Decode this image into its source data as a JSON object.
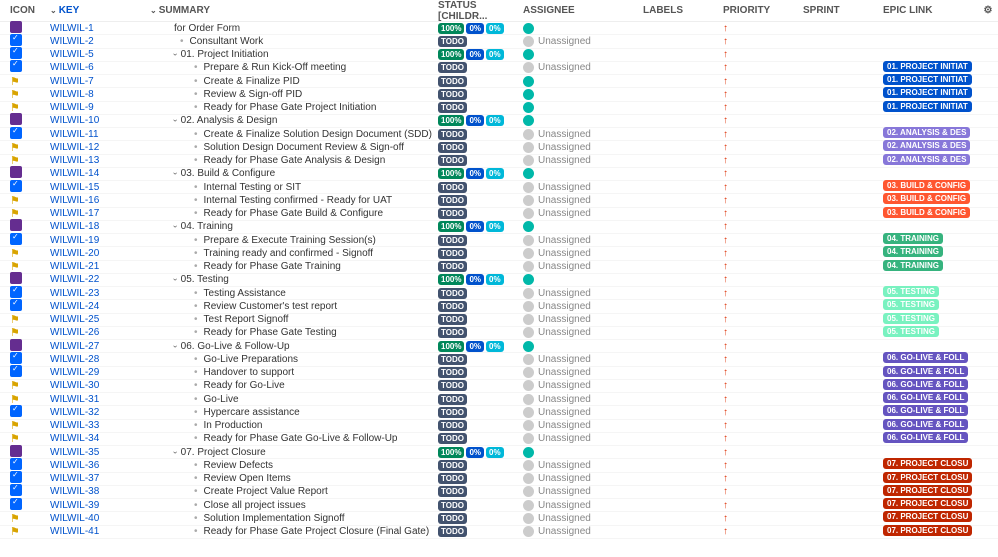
{
  "headers": {
    "icon": "ICON",
    "key": "KEY",
    "summary": "SUMMARY",
    "status": "STATUS [CHILDR...",
    "assignee": "ASSIGNEE",
    "labels": "LABELS",
    "priority": "PRIORITY",
    "sprint": "SPRINT",
    "epic": "EPIC LINK"
  },
  "badges": {
    "todo": "TODO",
    "p100": "100%",
    "p0a": "0%",
    "p0b": "0%"
  },
  "assignee_unassigned": "Unassigned",
  "epic_colors": {
    "initiation": "#0052cc",
    "analysis": "#8777d9",
    "build": "#ff5630",
    "training": "#36b37e",
    "testing": "#79f2c0",
    "golive": "#6554c0",
    "closure": "#bf2600"
  },
  "rows": [
    {
      "icon": "epic",
      "key": "WILWIL-1",
      "indent": 2,
      "summary": "for Order Form",
      "status": "triple",
      "avatar": "teal",
      "assignee": "",
      "epic": "",
      "epic_color": ""
    },
    {
      "icon": "task",
      "key": "WILWIL-2",
      "indent": 2,
      "bullet": true,
      "summary": "Consultant Work",
      "status": "todo",
      "avatar": "grey",
      "assignee": "Unassigned",
      "epic": "",
      "epic_color": ""
    },
    {
      "icon": "task",
      "key": "WILWIL-5",
      "indent": 2,
      "expand": true,
      "summary": "01. Project Initiation",
      "status": "triple",
      "avatar": "teal",
      "assignee": "",
      "epic": "",
      "epic_color": ""
    },
    {
      "icon": "task",
      "key": "WILWIL-6",
      "indent": 3,
      "bullet": true,
      "summary": "Prepare & Run Kick-Off meeting",
      "status": "todo",
      "avatar": "grey",
      "assignee": "Unassigned",
      "epic": "01. PROJECT INITIAT",
      "epic_color": "initiation"
    },
    {
      "icon": "flag",
      "key": "WILWIL-7",
      "indent": 3,
      "bullet": true,
      "summary": "Create & Finalize PID",
      "status": "todo",
      "avatar": "teal",
      "assignee": "",
      "epic": "01. PROJECT INITIAT",
      "epic_color": "initiation"
    },
    {
      "icon": "flag",
      "key": "WILWIL-8",
      "indent": 3,
      "bullet": true,
      "summary": "Review & Sign-off PID",
      "status": "todo",
      "avatar": "teal",
      "assignee": "",
      "epic": "01. PROJECT INITIAT",
      "epic_color": "initiation"
    },
    {
      "icon": "flag",
      "key": "WILWIL-9",
      "indent": 3,
      "bullet": true,
      "summary": "Ready for Phase Gate Project Initiation",
      "status": "todo",
      "avatar": "teal",
      "assignee": "",
      "epic": "01. PROJECT INITIAT",
      "epic_color": "initiation"
    },
    {
      "icon": "epic",
      "key": "WILWIL-10",
      "indent": 2,
      "expand": true,
      "summary": "02. Analysis & Design",
      "status": "triple",
      "avatar": "teal",
      "assignee": "",
      "epic": "",
      "epic_color": ""
    },
    {
      "icon": "task",
      "key": "WILWIL-11",
      "indent": 3,
      "bullet": true,
      "summary": "Create & Finalize Solution Design Document (SDD)",
      "status": "todo",
      "avatar": "grey",
      "assignee": "Unassigned",
      "epic": "02. ANALYSIS & DES",
      "epic_color": "analysis"
    },
    {
      "icon": "flag",
      "key": "WILWIL-12",
      "indent": 3,
      "bullet": true,
      "summary": "Solution Design Document Review & Sign-off",
      "status": "todo",
      "avatar": "grey",
      "assignee": "Unassigned",
      "epic": "02. ANALYSIS & DES",
      "epic_color": "analysis"
    },
    {
      "icon": "flag",
      "key": "WILWIL-13",
      "indent": 3,
      "bullet": true,
      "summary": "Ready for Phase Gate Analysis & Design",
      "status": "todo",
      "avatar": "grey",
      "assignee": "Unassigned",
      "epic": "02. ANALYSIS & DES",
      "epic_color": "analysis"
    },
    {
      "icon": "epic",
      "key": "WILWIL-14",
      "indent": 2,
      "expand": true,
      "summary": "03. Build & Configure",
      "status": "triple",
      "avatar": "teal",
      "assignee": "",
      "epic": "",
      "epic_color": ""
    },
    {
      "icon": "task",
      "key": "WILWIL-15",
      "indent": 3,
      "bullet": true,
      "summary": "Internal Testing or SIT",
      "status": "todo",
      "avatar": "grey",
      "assignee": "Unassigned",
      "epic": "03. BUILD & CONFIG",
      "epic_color": "build"
    },
    {
      "icon": "flag",
      "key": "WILWIL-16",
      "indent": 3,
      "bullet": true,
      "summary": "Internal Testing confirmed - Ready for UAT",
      "status": "todo",
      "avatar": "grey",
      "assignee": "Unassigned",
      "epic": "03. BUILD & CONFIG",
      "epic_color": "build"
    },
    {
      "icon": "flag",
      "key": "WILWIL-17",
      "indent": 3,
      "bullet": true,
      "summary": "Ready for Phase Gate Build & Configure",
      "status": "todo",
      "avatar": "grey",
      "assignee": "Unassigned",
      "epic": "03. BUILD & CONFIG",
      "epic_color": "build"
    },
    {
      "icon": "epic",
      "key": "WILWIL-18",
      "indent": 2,
      "expand": true,
      "summary": "04. Training",
      "status": "triple",
      "avatar": "teal",
      "assignee": "",
      "epic": "",
      "epic_color": ""
    },
    {
      "icon": "task",
      "key": "WILWIL-19",
      "indent": 3,
      "bullet": true,
      "summary": "Prepare & Execute Training Session(s)",
      "status": "todo",
      "avatar": "grey",
      "assignee": "Unassigned",
      "epic": "04. TRAINING",
      "epic_color": "training"
    },
    {
      "icon": "flag",
      "key": "WILWIL-20",
      "indent": 3,
      "bullet": true,
      "summary": "Training ready and confirmed - Signoff",
      "status": "todo",
      "avatar": "grey",
      "assignee": "Unassigned",
      "epic": "04. TRAINING",
      "epic_color": "training"
    },
    {
      "icon": "flag",
      "key": "WILWIL-21",
      "indent": 3,
      "bullet": true,
      "summary": "Ready for Phase Gate Training",
      "status": "todo",
      "avatar": "grey",
      "assignee": "Unassigned",
      "epic": "04. TRAINING",
      "epic_color": "training"
    },
    {
      "icon": "epic",
      "key": "WILWIL-22",
      "indent": 2,
      "expand": true,
      "summary": "05. Testing",
      "status": "triple",
      "avatar": "teal",
      "assignee": "",
      "epic": "",
      "epic_color": ""
    },
    {
      "icon": "task",
      "key": "WILWIL-23",
      "indent": 3,
      "bullet": true,
      "summary": "Testing Assistance",
      "status": "todo",
      "avatar": "grey",
      "assignee": "Unassigned",
      "epic": "05. TESTING",
      "epic_color": "testing"
    },
    {
      "icon": "task",
      "key": "WILWIL-24",
      "indent": 3,
      "bullet": true,
      "summary": "Review Customer's test report",
      "status": "todo",
      "avatar": "grey",
      "assignee": "Unassigned",
      "epic": "05. TESTING",
      "epic_color": "testing"
    },
    {
      "icon": "flag",
      "key": "WILWIL-25",
      "indent": 3,
      "bullet": true,
      "summary": "Test Report Signoff",
      "status": "todo",
      "avatar": "grey",
      "assignee": "Unassigned",
      "epic": "05. TESTING",
      "epic_color": "testing"
    },
    {
      "icon": "flag",
      "key": "WILWIL-26",
      "indent": 3,
      "bullet": true,
      "summary": "Ready for Phase Gate Testing",
      "status": "todo",
      "avatar": "grey",
      "assignee": "Unassigned",
      "epic": "05. TESTING",
      "epic_color": "testing"
    },
    {
      "icon": "epic",
      "key": "WILWIL-27",
      "indent": 2,
      "expand": true,
      "summary": "06. Go-Live & Follow-Up",
      "status": "triple",
      "avatar": "teal",
      "assignee": "",
      "epic": "",
      "epic_color": ""
    },
    {
      "icon": "task",
      "key": "WILWIL-28",
      "indent": 3,
      "bullet": true,
      "summary": "Go-Live Preparations",
      "status": "todo",
      "avatar": "grey",
      "assignee": "Unassigned",
      "epic": "06. GO-LIVE & FOLL",
      "epic_color": "golive"
    },
    {
      "icon": "task",
      "key": "WILWIL-29",
      "indent": 3,
      "bullet": true,
      "summary": "Handover to support",
      "status": "todo",
      "avatar": "grey",
      "assignee": "Unassigned",
      "epic": "06. GO-LIVE & FOLL",
      "epic_color": "golive"
    },
    {
      "icon": "flag",
      "key": "WILWIL-30",
      "indent": 3,
      "bullet": true,
      "summary": "Ready for Go-Live",
      "status": "todo",
      "avatar": "grey",
      "assignee": "Unassigned",
      "epic": "06. GO-LIVE & FOLL",
      "epic_color": "golive"
    },
    {
      "icon": "flag",
      "key": "WILWIL-31",
      "indent": 3,
      "bullet": true,
      "summary": "Go-Live",
      "status": "todo",
      "avatar": "grey",
      "assignee": "Unassigned",
      "epic": "06. GO-LIVE & FOLL",
      "epic_color": "golive"
    },
    {
      "icon": "task",
      "key": "WILWIL-32",
      "indent": 3,
      "bullet": true,
      "summary": "Hypercare assistance",
      "status": "todo",
      "avatar": "grey",
      "assignee": "Unassigned",
      "epic": "06. GO-LIVE & FOLL",
      "epic_color": "golive"
    },
    {
      "icon": "flag",
      "key": "WILWIL-33",
      "indent": 3,
      "bullet": true,
      "summary": "In Production",
      "status": "todo",
      "avatar": "grey",
      "assignee": "Unassigned",
      "epic": "06. GO-LIVE & FOLL",
      "epic_color": "golive"
    },
    {
      "icon": "flag",
      "key": "WILWIL-34",
      "indent": 3,
      "bullet": true,
      "summary": "Ready for Phase Gate Go-Live & Follow-Up",
      "status": "todo",
      "avatar": "grey",
      "assignee": "Unassigned",
      "epic": "06. GO-LIVE & FOLL",
      "epic_color": "golive"
    },
    {
      "icon": "epic",
      "key": "WILWIL-35",
      "indent": 2,
      "expand": true,
      "summary": "07. Project Closure",
      "status": "triple",
      "avatar": "teal",
      "assignee": "",
      "epic": "",
      "epic_color": ""
    },
    {
      "icon": "task",
      "key": "WILWIL-36",
      "indent": 3,
      "bullet": true,
      "summary": "Review Defects",
      "status": "todo",
      "avatar": "grey",
      "assignee": "Unassigned",
      "epic": "07. PROJECT CLOSU",
      "epic_color": "closure"
    },
    {
      "icon": "task",
      "key": "WILWIL-37",
      "indent": 3,
      "bullet": true,
      "summary": "Review Open Items",
      "status": "todo",
      "avatar": "grey",
      "assignee": "Unassigned",
      "epic": "07. PROJECT CLOSU",
      "epic_color": "closure"
    },
    {
      "icon": "task",
      "key": "WILWIL-38",
      "indent": 3,
      "bullet": true,
      "summary": "Create Project Value Report",
      "status": "todo",
      "avatar": "grey",
      "assignee": "Unassigned",
      "epic": "07. PROJECT CLOSU",
      "epic_color": "closure"
    },
    {
      "icon": "task",
      "key": "WILWIL-39",
      "indent": 3,
      "bullet": true,
      "summary": "Close all project issues",
      "status": "todo",
      "avatar": "grey",
      "assignee": "Unassigned",
      "epic": "07. PROJECT CLOSU",
      "epic_color": "closure"
    },
    {
      "icon": "flag",
      "key": "WILWIL-40",
      "indent": 3,
      "bullet": true,
      "summary": "Solution Implementation Signoff",
      "status": "todo",
      "avatar": "grey",
      "assignee": "Unassigned",
      "epic": "07. PROJECT CLOSU",
      "epic_color": "closure"
    },
    {
      "icon": "flag",
      "key": "WILWIL-41",
      "indent": 3,
      "bullet": true,
      "summary": "Ready for Phase Gate Project Closure (Final Gate)",
      "status": "todo",
      "avatar": "grey",
      "assignee": "Unassigned",
      "epic": "07. PROJECT CLOSU",
      "epic_color": "closure"
    }
  ]
}
